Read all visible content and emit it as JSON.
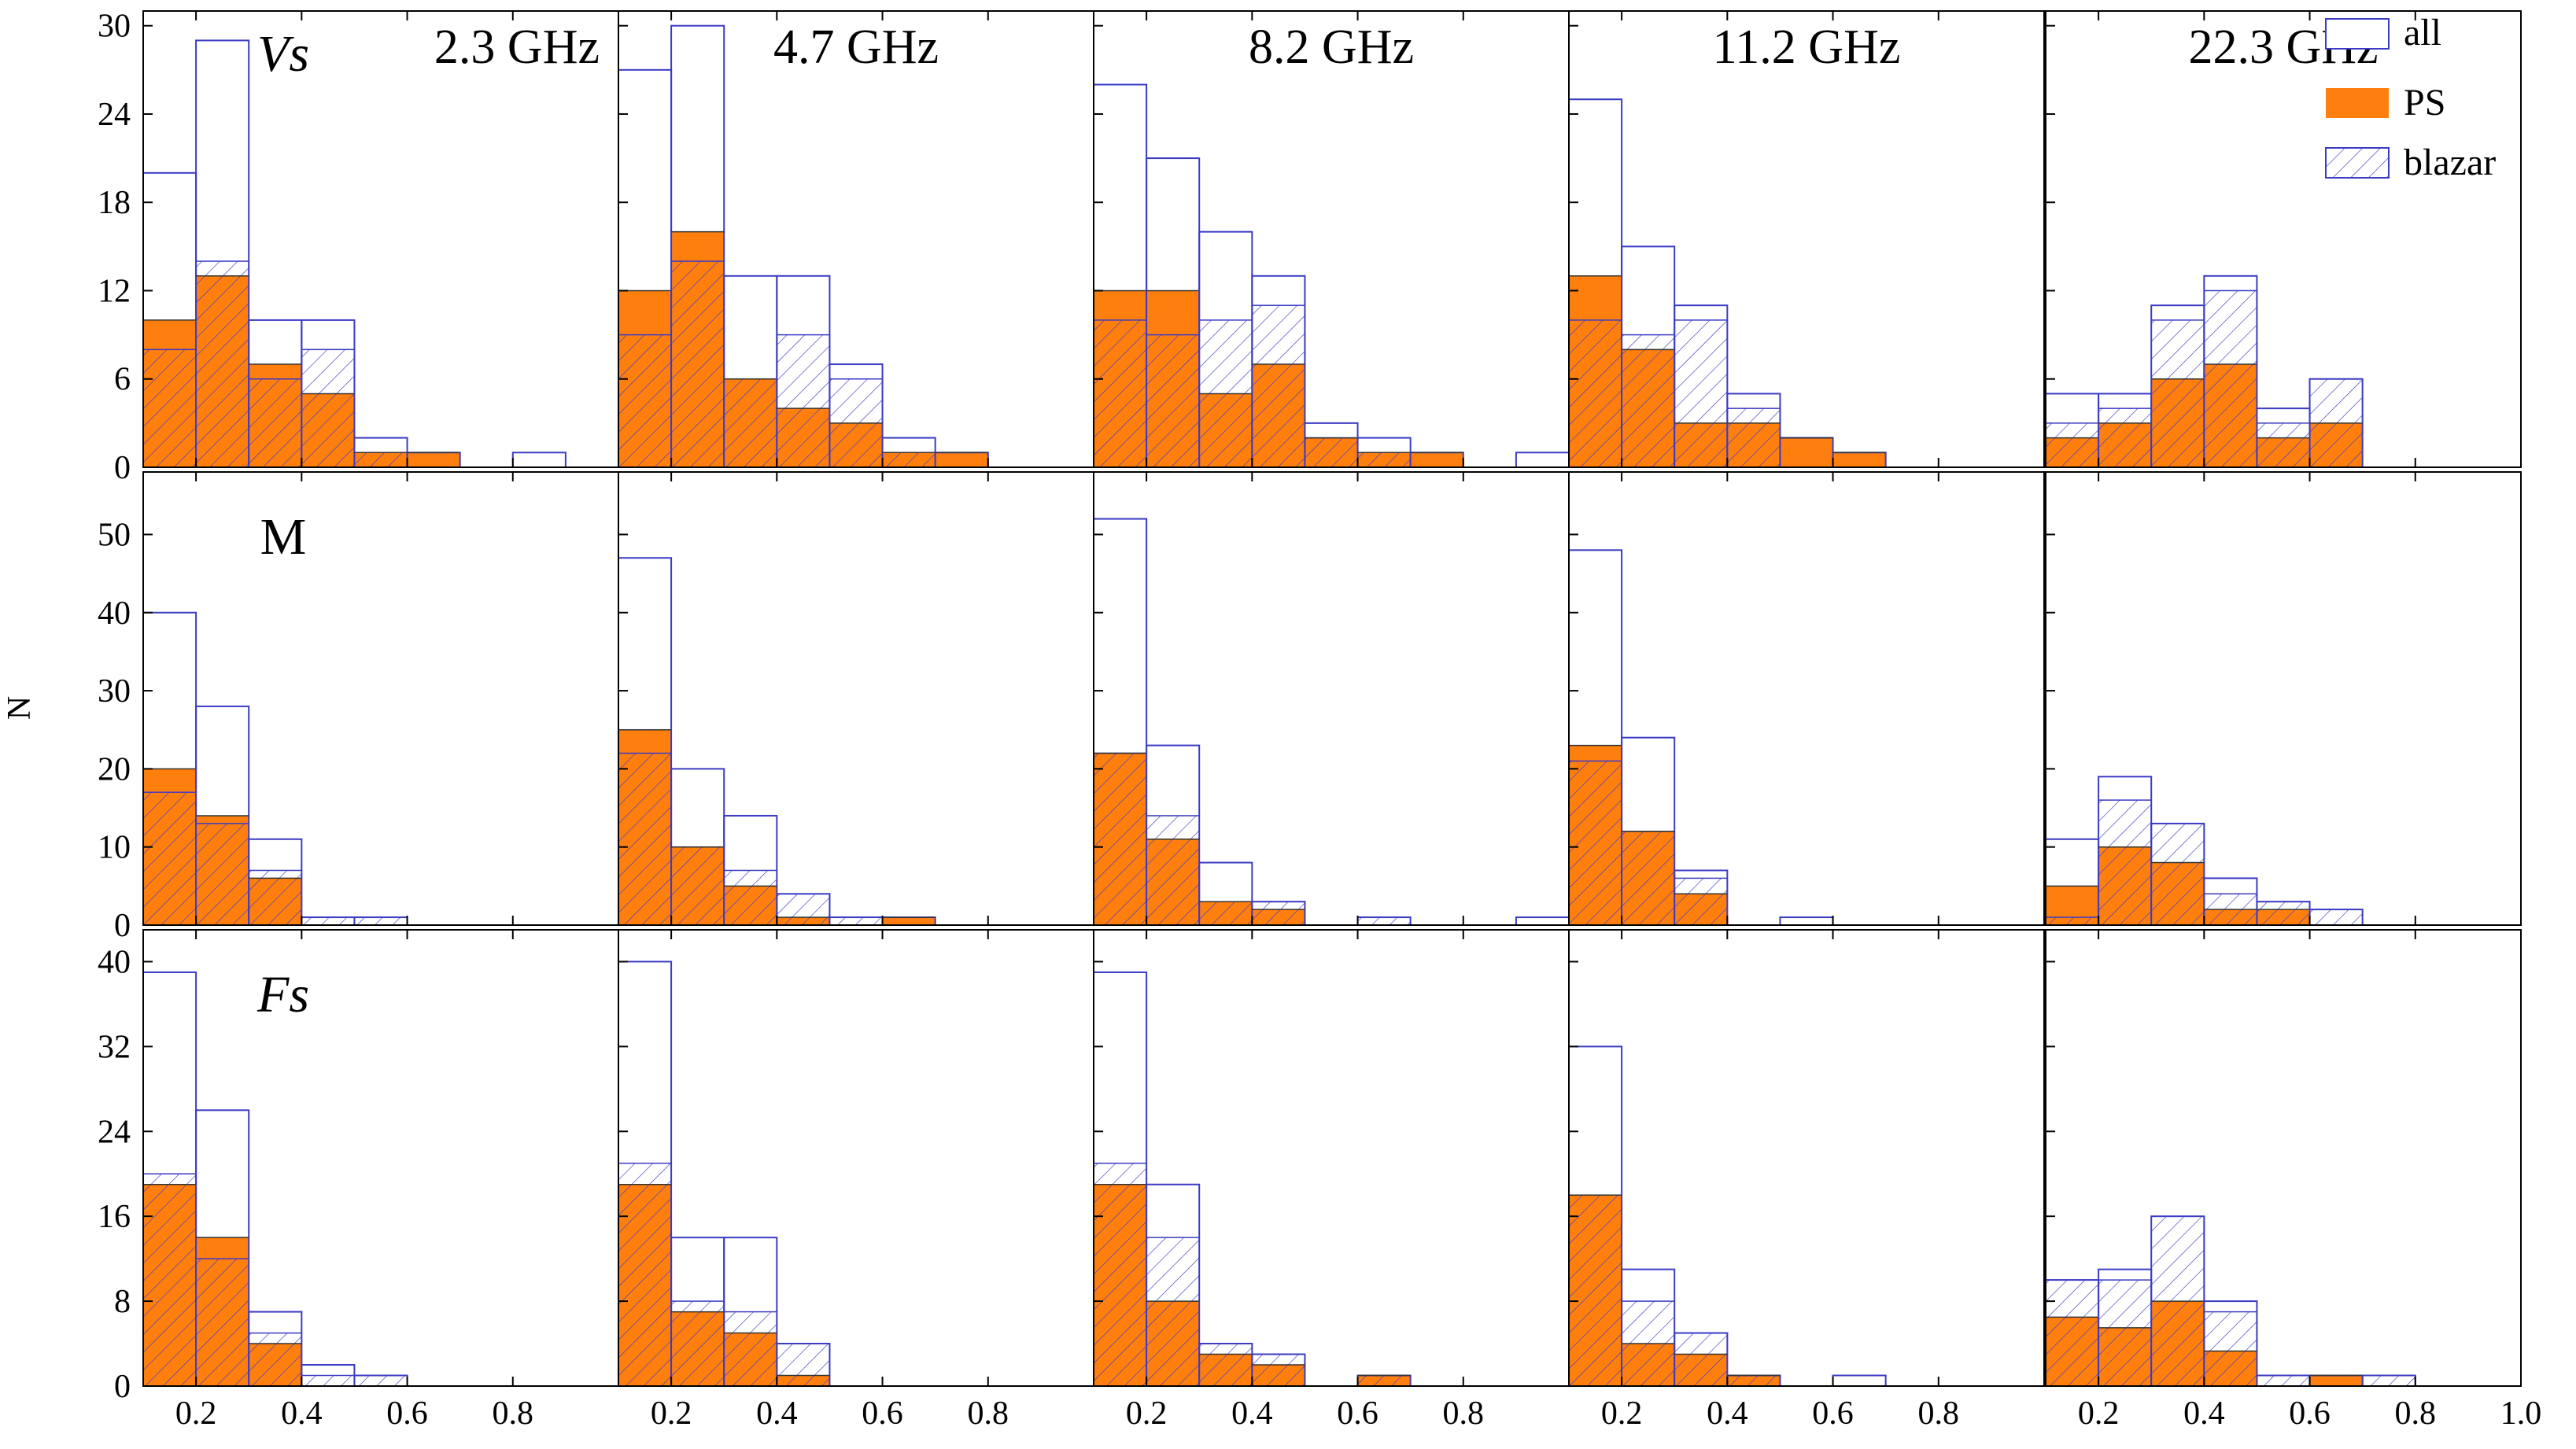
{
  "figure": {
    "ylabel": "N",
    "legend": {
      "all": "all",
      "ps": "PS",
      "blazar": "blazar"
    },
    "colors": {
      "all_stroke": "#3b3bc4",
      "ps_fill": "#ff7f0e",
      "hatch": "#3b3bc4",
      "axis": "#000000"
    }
  },
  "chart_data": {
    "type": "bar",
    "subtype": "stacked histogram grid (3 rows x 5 columns)",
    "bin_width": 0.1,
    "bin_starts": [
      0.1,
      0.2,
      0.3,
      0.4,
      0.5,
      0.6,
      0.7,
      0.8,
      0.9
    ],
    "frequencies": [
      "2.3 GHz",
      "4.7 GHz",
      "8.2 GHz",
      "11.2 GHz",
      "22.3 GHz"
    ],
    "xlabel": "",
    "ylabel": "N",
    "legend": [
      "all",
      "PS",
      "blazar"
    ],
    "x_ticks": [
      [
        "0.2",
        "0.4",
        "0.6",
        "0.8"
      ],
      [
        "0.2",
        "0.4",
        "0.6",
        "0.8"
      ],
      [
        "0.2",
        "0.4",
        "0.6",
        "0.8"
      ],
      [
        "0.2",
        "0.4",
        "0.6",
        "0.8"
      ],
      [
        "0.2",
        "0.4",
        "0.6",
        "0.8",
        "1.0"
      ]
    ],
    "rows": [
      {
        "label": "Vs",
        "italic": true,
        "ylim": [
          0,
          31
        ],
        "yticks": [
          0,
          6,
          12,
          18,
          24,
          30
        ],
        "panels": [
          {
            "all": [
              20,
              29,
              10,
              10,
              2,
              1,
              0,
              1,
              0
            ],
            "ps": [
              10,
              13,
              7,
              5,
              1,
              1,
              0,
              0,
              0
            ],
            "blazar": [
              8,
              14,
              6,
              8,
              1,
              0,
              0,
              0,
              0
            ]
          },
          {
            "all": [
              27,
              30,
              13,
              13,
              7,
              2,
              1,
              0,
              0
            ],
            "ps": [
              12,
              16,
              6,
              4,
              3,
              1,
              1,
              0,
              0
            ],
            "blazar": [
              9,
              14,
              6,
              9,
              6,
              1,
              0,
              0,
              0
            ]
          },
          {
            "all": [
              26,
              21,
              16,
              13,
              3,
              2,
              1,
              0,
              1
            ],
            "ps": [
              12,
              12,
              5,
              7,
              2,
              1,
              1,
              0,
              0
            ],
            "blazar": [
              10,
              9,
              10,
              11,
              2,
              1,
              0,
              0,
              0
            ]
          },
          {
            "all": [
              25,
              15,
              11,
              5,
              2,
              1,
              0,
              0,
              0
            ],
            "ps": [
              13,
              8,
              3,
              3,
              2,
              1,
              0,
              0,
              0
            ],
            "blazar": [
              10,
              9,
              10,
              4,
              0,
              0,
              0,
              0,
              0
            ]
          },
          {
            "all": [
              5,
              5,
              11,
              13,
              4,
              6,
              0,
              0,
              0
            ],
            "ps": [
              2,
              3,
              6,
              7,
              2,
              3,
              0,
              0,
              0
            ],
            "blazar": [
              3,
              4,
              10,
              12,
              3,
              6,
              0,
              0,
              0
            ]
          }
        ]
      },
      {
        "label": "M",
        "italic": false,
        "ylim": [
          0,
          58
        ],
        "yticks": [
          0,
          10,
          20,
          30,
          40,
          50
        ],
        "panels": [
          {
            "all": [
              40,
              28,
              11,
              1,
              1,
              0,
              0,
              0,
              0
            ],
            "ps": [
              20,
              14,
              6,
              0,
              0,
              0,
              0,
              0,
              0
            ],
            "blazar": [
              17,
              13,
              7,
              1,
              1,
              0,
              0,
              0,
              0
            ]
          },
          {
            "all": [
              47,
              20,
              14,
              4,
              1,
              1,
              0,
              0,
              0
            ],
            "ps": [
              25,
              10,
              5,
              1,
              0,
              1,
              0,
              0,
              0
            ],
            "blazar": [
              22,
              10,
              7,
              4,
              1,
              0,
              0,
              0,
              0
            ]
          },
          {
            "all": [
              52,
              23,
              8,
              3,
              0,
              1,
              0,
              0,
              1
            ],
            "ps": [
              22,
              11,
              3,
              2,
              0,
              0,
              0,
              0,
              0
            ],
            "blazar": [
              22,
              14,
              3,
              3,
              0,
              1,
              0,
              0,
              0
            ]
          },
          {
            "all": [
              48,
              24,
              7,
              0,
              1,
              0,
              0,
              0,
              0
            ],
            "ps": [
              23,
              12,
              4,
              0,
              0,
              0,
              0,
              0,
              0
            ],
            "blazar": [
              21,
              12,
              6,
              0,
              0,
              0,
              0,
              0,
              0
            ]
          },
          {
            "all": [
              11,
              19,
              13,
              6,
              3,
              2,
              0,
              0,
              0
            ],
            "ps": [
              5,
              10,
              8,
              2,
              2,
              0,
              0,
              0,
              0
            ],
            "blazar": [
              1,
              16,
              13,
              4,
              3,
              2,
              0,
              0,
              0
            ]
          }
        ]
      },
      {
        "label": "Fs",
        "italic": true,
        "ylim": [
          0,
          43
        ],
        "yticks": [
          0,
          8,
          16,
          24,
          32,
          40
        ],
        "panels": [
          {
            "all": [
              39,
              26,
              7,
              2,
              1,
              0,
              0,
              0,
              0
            ],
            "ps": [
              19,
              14,
              4,
              0,
              0,
              0,
              0,
              0,
              0
            ],
            "blazar": [
              20,
              12,
              5,
              1,
              1,
              0,
              0,
              0,
              0
            ]
          },
          {
            "all": [
              40,
              14,
              14,
              4,
              0,
              0,
              0,
              0,
              0
            ],
            "ps": [
              19,
              7,
              5,
              1,
              0,
              0,
              0,
              0,
              0
            ],
            "blazar": [
              21,
              8,
              7,
              4,
              0,
              0,
              0,
              0,
              0
            ]
          },
          {
            "all": [
              39,
              19,
              4,
              3,
              0,
              1,
              0,
              0,
              0
            ],
            "ps": [
              19,
              8,
              3,
              2,
              0,
              1,
              0,
              0,
              0
            ],
            "blazar": [
              21,
              14,
              4,
              3,
              0,
              1,
              0,
              0,
              0
            ]
          },
          {
            "all": [
              32,
              11,
              5,
              1,
              0,
              1,
              0,
              0,
              0
            ],
            "ps": [
              18,
              4,
              3,
              1,
              0,
              0,
              0,
              0,
              0
            ],
            "blazar": [
              18,
              8,
              5,
              1,
              0,
              0,
              0,
              0,
              0
            ]
          },
          {
            "all": [
              10,
              11,
              16,
              8,
              1,
              1,
              1,
              0,
              0
            ],
            "ps": [
              6.5,
              5.5,
              8,
              3.3,
              0,
              1,
              0,
              0,
              0
            ],
            "blazar": [
              10,
              10,
              16,
              7,
              1,
              0,
              1,
              0,
              0
            ]
          }
        ]
      }
    ]
  }
}
